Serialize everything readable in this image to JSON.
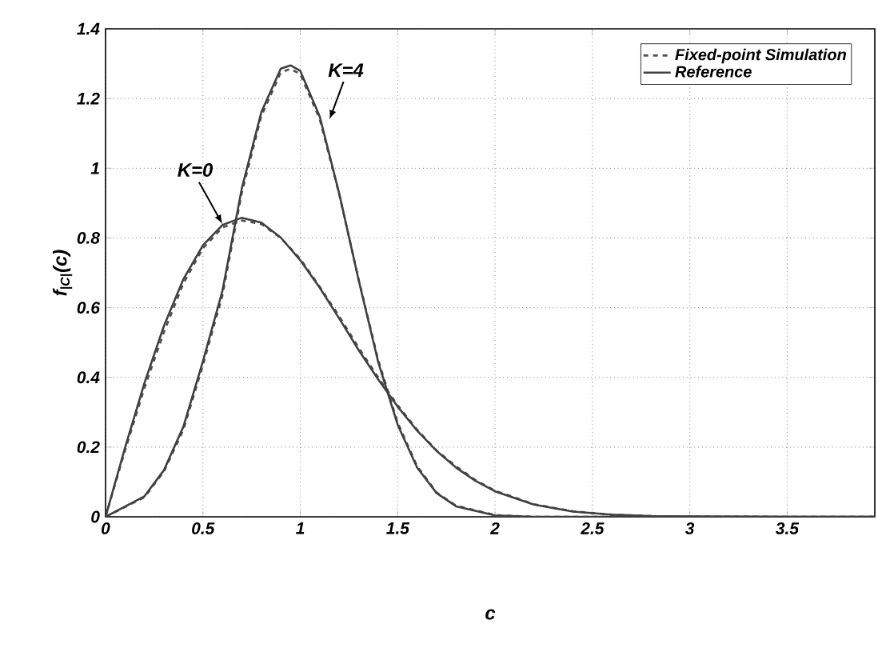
{
  "chart_data": {
    "type": "line",
    "xlabel": "c",
    "ylabel": "f$_{|C|}$(c)",
    "xlim": [
      0,
      3.95
    ],
    "ylim": [
      0,
      1.4
    ],
    "xticks": [
      0,
      0.5,
      1,
      1.5,
      2,
      2.5,
      3,
      3.5
    ],
    "yticks": [
      0,
      0.2,
      0.4,
      0.6,
      0.8,
      1,
      1.2,
      1.4
    ],
    "grid": true,
    "legend": "top right",
    "series": [
      {
        "name": "Fixed-point Simulation",
        "color": "#505050",
        "line_style": "dashed",
        "x": [
          0,
          0.1,
          0.2,
          0.3,
          0.4,
          0.5,
          0.6,
          0.7,
          0.8,
          0.9,
          1.0,
          1.1,
          1.2,
          1.3,
          1.4,
          1.5,
          1.6,
          1.7,
          1.8,
          1.9,
          2.0,
          2.2,
          2.4,
          2.6,
          2.8,
          3.0,
          3.5,
          3.95
        ],
        "values": [
          0,
          0.19,
          0.37,
          0.53,
          0.67,
          0.77,
          0.83,
          0.85,
          0.84,
          0.8,
          0.74,
          0.66,
          0.575,
          0.485,
          0.4,
          0.32,
          0.25,
          0.19,
          0.145,
          0.105,
          0.075,
          0.036,
          0.016,
          0.006,
          0.002,
          0.001,
          0,
          0
        ]
      },
      {
        "name": "Reference",
        "color": "#404040",
        "line_style": "solid",
        "x": [
          0,
          0.1,
          0.2,
          0.3,
          0.4,
          0.5,
          0.6,
          0.7,
          0.8,
          0.9,
          1.0,
          1.1,
          1.2,
          1.3,
          1.4,
          1.5,
          1.6,
          1.7,
          1.8,
          1.9,
          2.0,
          2.2,
          2.4,
          2.6,
          2.8,
          3.0,
          3.5,
          3.95
        ],
        "values": [
          0,
          0.198,
          0.384,
          0.548,
          0.682,
          0.779,
          0.837,
          0.858,
          0.844,
          0.801,
          0.736,
          0.657,
          0.569,
          0.478,
          0.394,
          0.316,
          0.247,
          0.189,
          0.141,
          0.103,
          0.073,
          0.035,
          0.015,
          0.006,
          0.002,
          0.001,
          0,
          0
        ]
      },
      {
        "color": "#505050",
        "line_style": "dashed",
        "x": [
          0,
          0.2,
          0.3,
          0.4,
          0.5,
          0.6,
          0.7,
          0.8,
          0.9,
          0.95,
          1.0,
          1.1,
          1.2,
          1.3,
          1.4,
          1.5,
          1.6,
          1.7,
          1.8,
          2.0,
          2.2,
          2.5,
          3.0,
          3.95
        ],
        "values": [
          0,
          0.056,
          0.13,
          0.25,
          0.435,
          0.635,
          0.93,
          1.15,
          1.275,
          1.285,
          1.27,
          1.14,
          0.925,
          0.68,
          0.45,
          0.27,
          0.145,
          0.07,
          0.032,
          0.005,
          0,
          0,
          0,
          0
        ]
      },
      {
        "color": "#404040",
        "line_style": "solid",
        "x": [
          0,
          0.2,
          0.3,
          0.4,
          0.5,
          0.6,
          0.7,
          0.8,
          0.9,
          0.95,
          1.0,
          1.1,
          1.2,
          1.3,
          1.4,
          1.5,
          1.6,
          1.7,
          1.8,
          2.0,
          2.2,
          2.5,
          3.0,
          3.95
        ],
        "values": [
          0,
          0.059,
          0.134,
          0.259,
          0.446,
          0.648,
          0.943,
          1.161,
          1.286,
          1.295,
          1.279,
          1.148,
          0.927,
          0.678,
          0.444,
          0.264,
          0.141,
          0.068,
          0.03,
          0.004,
          0,
          0,
          0,
          0
        ]
      }
    ],
    "annotations": [
      {
        "text": "K=0",
        "x": 0.6,
        "y": 0.84
      },
      {
        "text": "K=4",
        "x": 1.15,
        "y": 1.14
      }
    ]
  }
}
